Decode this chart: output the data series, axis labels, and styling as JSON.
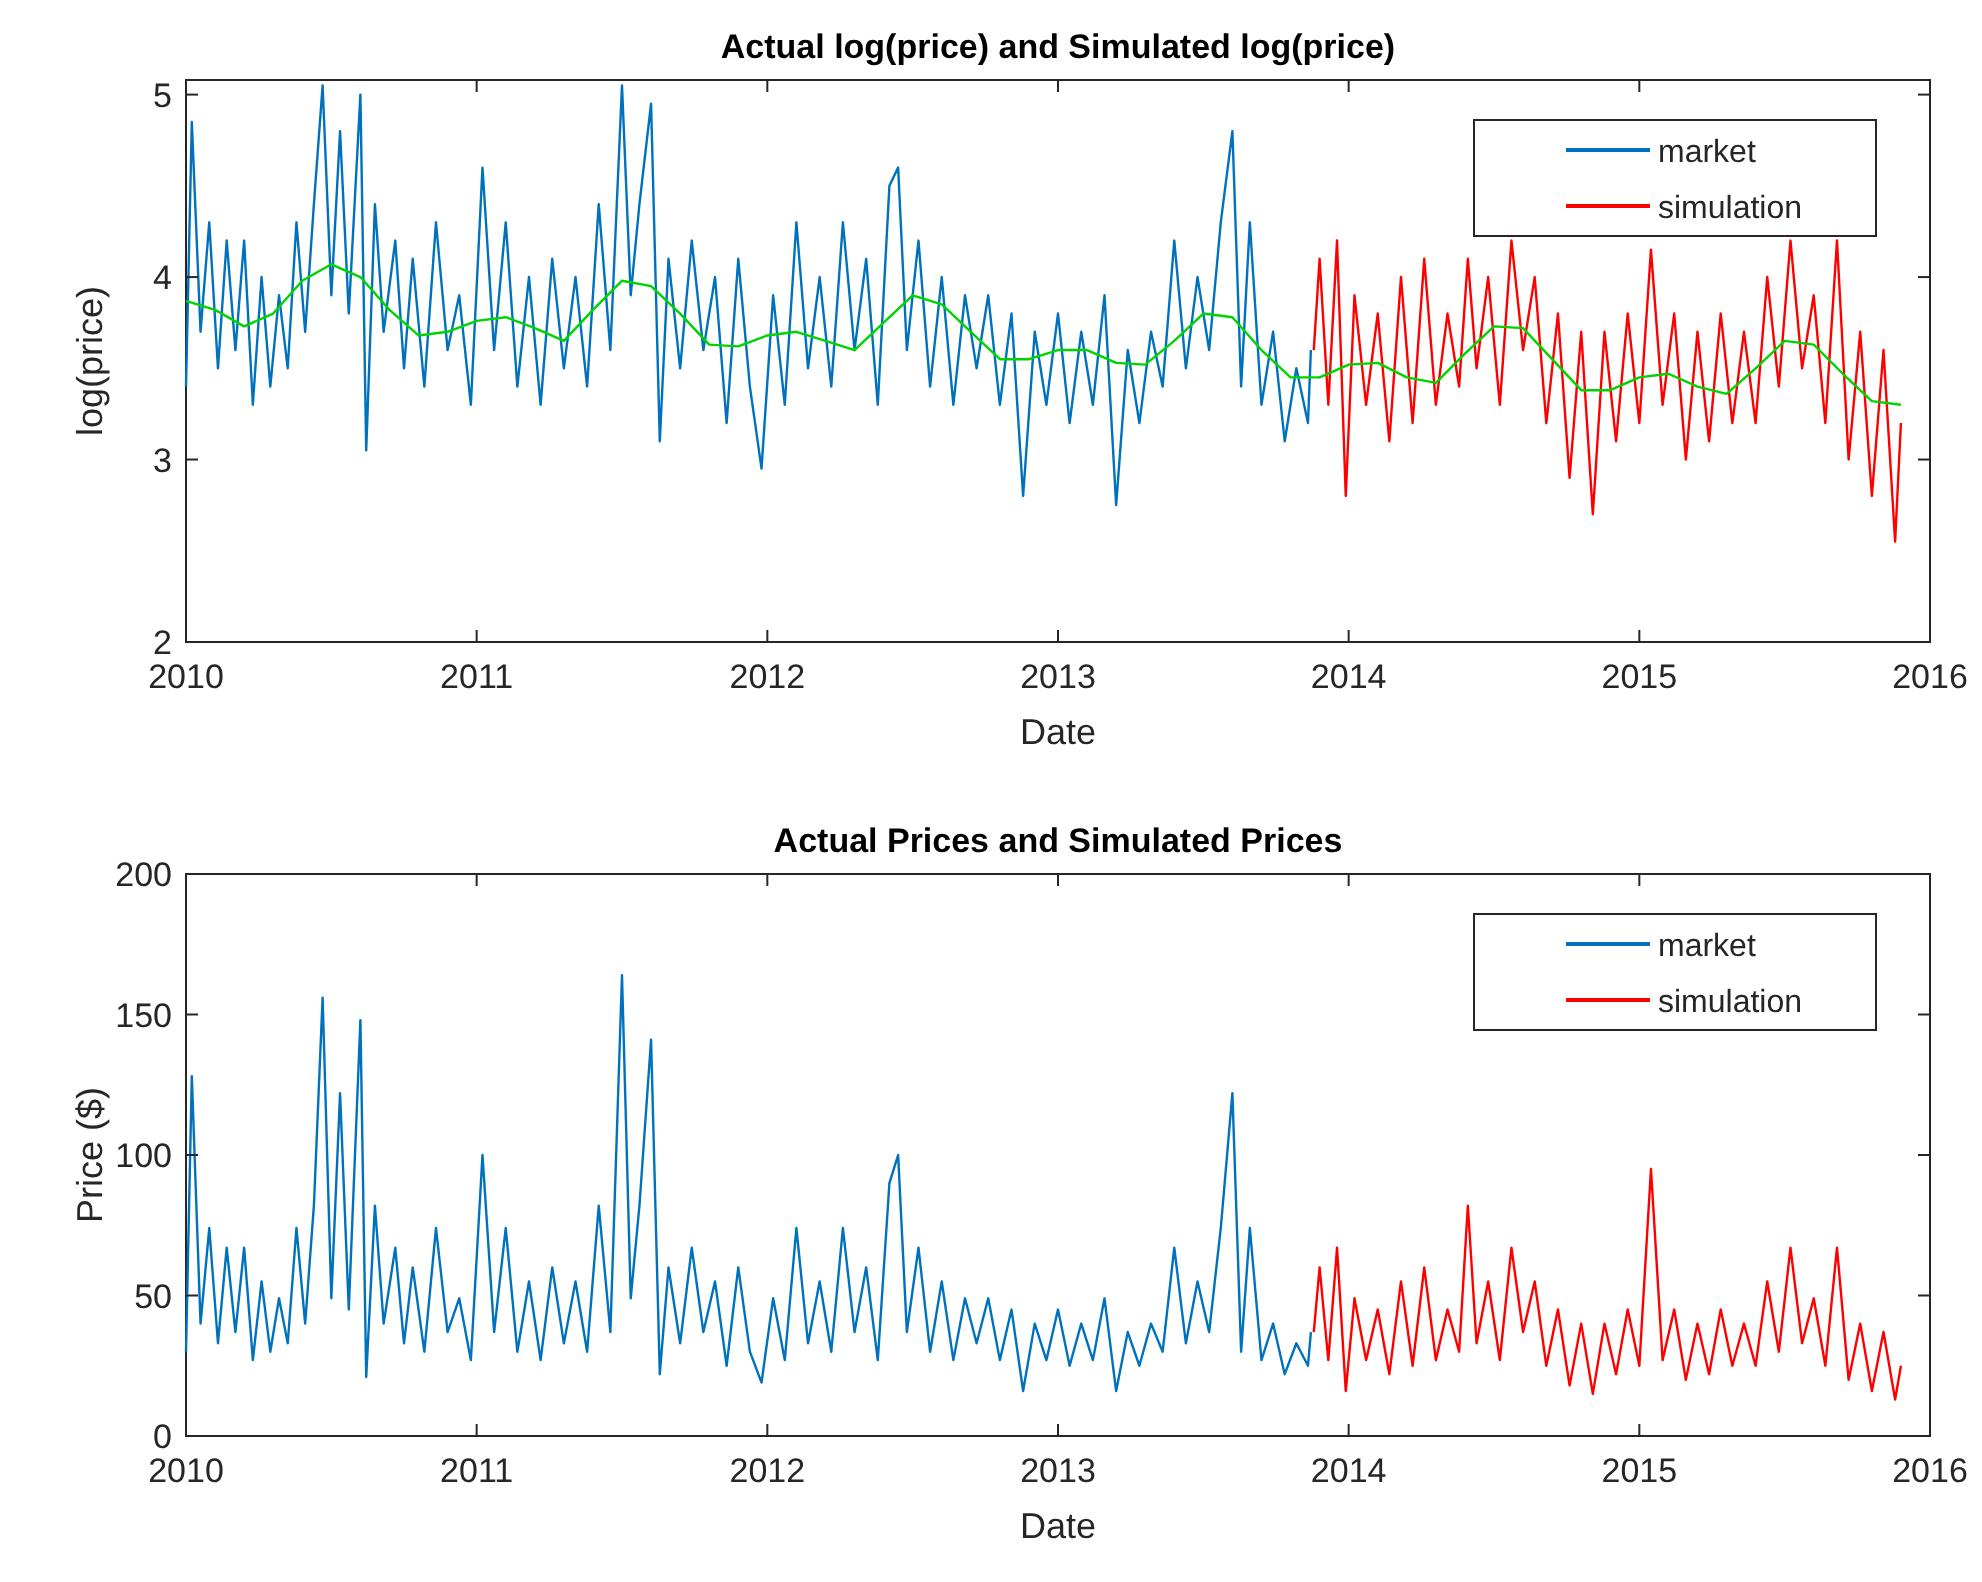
{
  "chart_data": [
    {
      "type": "line",
      "title": "Actual log(price) and Simulated log(price)",
      "xlabel": "Date",
      "ylabel": "log(price)",
      "xlim": [
        2010,
        2016
      ],
      "xticks": [
        2010,
        2011,
        2012,
        2013,
        2014,
        2015,
        2016
      ],
      "ylim": [
        2,
        5.08
      ],
      "yticks": [
        2,
        3,
        4,
        5
      ],
      "legend": "top right",
      "series": [
        {
          "name": "market",
          "color": "#0072bd",
          "x": [
            2010.0,
            2010.02,
            2010.05,
            2010.08,
            2010.11,
            2010.14,
            2010.17,
            2010.2,
            2010.23,
            2010.26,
            2010.29,
            2010.32,
            2010.35,
            2010.38,
            2010.41,
            2010.44,
            2010.47,
            2010.5,
            2010.53,
            2010.56,
            2010.6,
            2010.62,
            2010.65,
            2010.68,
            2010.72,
            2010.75,
            2010.78,
            2010.82,
            2010.86,
            2010.9,
            2010.94,
            2010.98,
            2011.02,
            2011.06,
            2011.1,
            2011.14,
            2011.18,
            2011.22,
            2011.26,
            2011.3,
            2011.34,
            2011.38,
            2011.42,
            2011.46,
            2011.5,
            2011.53,
            2011.56,
            2011.6,
            2011.63,
            2011.66,
            2011.7,
            2011.74,
            2011.78,
            2011.82,
            2011.86,
            2011.9,
            2011.94,
            2011.98,
            2012.02,
            2012.06,
            2012.1,
            2012.14,
            2012.18,
            2012.22,
            2012.26,
            2012.3,
            2012.34,
            2012.38,
            2012.42,
            2012.45,
            2012.48,
            2012.52,
            2012.56,
            2012.6,
            2012.64,
            2012.68,
            2012.72,
            2012.76,
            2012.8,
            2012.84,
            2012.88,
            2012.92,
            2012.96,
            2013.0,
            2013.04,
            2013.08,
            2013.12,
            2013.16,
            2013.2,
            2013.24,
            2013.28,
            2013.32,
            2013.36,
            2013.4,
            2013.44,
            2013.48,
            2013.52,
            2013.56,
            2013.6,
            2013.63,
            2013.66,
            2013.7,
            2013.74,
            2013.78,
            2013.82,
            2013.86,
            2013.87
          ],
          "values": [
            3.4,
            4.85,
            3.7,
            4.3,
            3.5,
            4.2,
            3.6,
            4.2,
            3.3,
            4.0,
            3.4,
            3.9,
            3.5,
            4.3,
            3.7,
            4.4,
            5.05,
            3.9,
            4.8,
            3.8,
            5.0,
            3.05,
            4.4,
            3.7,
            4.2,
            3.5,
            4.1,
            3.4,
            4.3,
            3.6,
            3.9,
            3.3,
            4.6,
            3.6,
            4.3,
            3.4,
            4.0,
            3.3,
            4.1,
            3.5,
            4.0,
            3.4,
            4.4,
            3.6,
            5.05,
            3.9,
            4.4,
            4.95,
            3.1,
            4.1,
            3.5,
            4.2,
            3.6,
            4.0,
            3.2,
            4.1,
            3.4,
            2.95,
            3.9,
            3.3,
            4.3,
            3.5,
            4.0,
            3.4,
            4.3,
            3.6,
            4.1,
            3.3,
            4.5,
            4.6,
            3.6,
            4.2,
            3.4,
            4.0,
            3.3,
            3.9,
            3.5,
            3.9,
            3.3,
            3.8,
            2.8,
            3.7,
            3.3,
            3.8,
            3.2,
            3.7,
            3.3,
            3.9,
            2.75,
            3.6,
            3.2,
            3.7,
            3.4,
            4.2,
            3.5,
            4.0,
            3.6,
            4.3,
            4.8,
            3.4,
            4.3,
            3.3,
            3.7,
            3.1,
            3.5,
            3.2,
            3.6
          ]
        },
        {
          "name": "simulation",
          "color": "#ff0000",
          "x": [
            2013.88,
            2013.9,
            2013.93,
            2013.96,
            2013.99,
            2014.02,
            2014.06,
            2014.1,
            2014.14,
            2014.18,
            2014.22,
            2014.26,
            2014.3,
            2014.34,
            2014.38,
            2014.41,
            2014.44,
            2014.48,
            2014.52,
            2014.56,
            2014.6,
            2014.64,
            2014.68,
            2014.72,
            2014.76,
            2014.8,
            2014.84,
            2014.88,
            2014.92,
            2014.96,
            2015.0,
            2015.04,
            2015.08,
            2015.12,
            2015.16,
            2015.2,
            2015.24,
            2015.28,
            2015.32,
            2015.36,
            2015.4,
            2015.44,
            2015.48,
            2015.52,
            2015.56,
            2015.6,
            2015.64,
            2015.68,
            2015.72,
            2015.76,
            2015.8,
            2015.84,
            2015.88,
            2015.9
          ],
          "values": [
            3.6,
            4.1,
            3.3,
            4.2,
            2.8,
            3.9,
            3.3,
            3.8,
            3.1,
            4.0,
            3.2,
            4.1,
            3.3,
            3.8,
            3.4,
            4.1,
            3.5,
            4.0,
            3.3,
            4.2,
            3.6,
            4.0,
            3.2,
            3.8,
            2.9,
            3.7,
            2.7,
            3.7,
            3.1,
            3.8,
            3.2,
            4.15,
            3.3,
            3.8,
            3.0,
            3.7,
            3.1,
            3.8,
            3.2,
            3.7,
            3.2,
            4.0,
            3.4,
            4.2,
            3.5,
            3.9,
            3.2,
            4.2,
            3.0,
            3.7,
            2.8,
            3.6,
            2.55,
            3.2
          ]
        },
        {
          "color": "#00d400",
          "x": [
            2010.0,
            2010.1,
            2010.2,
            2010.3,
            2010.4,
            2010.5,
            2010.6,
            2010.7,
            2010.8,
            2010.9,
            2011.0,
            2011.1,
            2011.2,
            2011.3,
            2011.4,
            2011.5,
            2011.6,
            2011.7,
            2011.8,
            2011.9,
            2012.0,
            2012.1,
            2012.2,
            2012.3,
            2012.4,
            2012.5,
            2012.6,
            2012.7,
            2012.8,
            2012.9,
            2013.0,
            2013.1,
            2013.2,
            2013.3,
            2013.4,
            2013.5,
            2013.6,
            2013.7,
            2013.8,
            2013.9,
            2014.0,
            2014.1,
            2014.2,
            2014.3,
            2014.4,
            2014.5,
            2014.6,
            2014.7,
            2014.8,
            2014.9,
            2015.0,
            2015.1,
            2015.2,
            2015.3,
            2015.4,
            2015.5,
            2015.6,
            2015.7,
            2015.8,
            2015.9
          ],
          "values": [
            3.87,
            3.82,
            3.73,
            3.8,
            3.98,
            4.07,
            4.0,
            3.82,
            3.68,
            3.7,
            3.76,
            3.78,
            3.72,
            3.65,
            3.82,
            3.98,
            3.95,
            3.8,
            3.63,
            3.62,
            3.68,
            3.7,
            3.65,
            3.6,
            3.75,
            3.9,
            3.85,
            3.7,
            3.55,
            3.55,
            3.6,
            3.6,
            3.53,
            3.52,
            3.65,
            3.8,
            3.78,
            3.6,
            3.45,
            3.45,
            3.52,
            3.53,
            3.45,
            3.42,
            3.58,
            3.73,
            3.72,
            3.55,
            3.38,
            3.38,
            3.45,
            3.47,
            3.4,
            3.36,
            3.5,
            3.65,
            3.63,
            3.47,
            3.32,
            3.3
          ]
        }
      ]
    },
    {
      "type": "line",
      "title": "Actual Prices and Simulated Prices",
      "xlabel": "Date",
      "ylabel": "Price ($)",
      "xlim": [
        2010,
        2016
      ],
      "xticks": [
        2010,
        2011,
        2012,
        2013,
        2014,
        2015,
        2016
      ],
      "ylim": [
        0,
        200
      ],
      "yticks": [
        0,
        50,
        100,
        150,
        200
      ],
      "legend": "top right",
      "series": [
        {
          "name": "market",
          "color": "#0072bd",
          "x": [
            2010.0,
            2010.02,
            2010.05,
            2010.08,
            2010.11,
            2010.14,
            2010.17,
            2010.2,
            2010.23,
            2010.26,
            2010.29,
            2010.32,
            2010.35,
            2010.38,
            2010.41,
            2010.44,
            2010.47,
            2010.5,
            2010.53,
            2010.56,
            2010.6,
            2010.62,
            2010.65,
            2010.68,
            2010.72,
            2010.75,
            2010.78,
            2010.82,
            2010.86,
            2010.9,
            2010.94,
            2010.98,
            2011.02,
            2011.06,
            2011.1,
            2011.14,
            2011.18,
            2011.22,
            2011.26,
            2011.3,
            2011.34,
            2011.38,
            2011.42,
            2011.46,
            2011.5,
            2011.53,
            2011.56,
            2011.6,
            2011.63,
            2011.66,
            2011.7,
            2011.74,
            2011.78,
            2011.82,
            2011.86,
            2011.9,
            2011.94,
            2011.98,
            2012.02,
            2012.06,
            2012.1,
            2012.14,
            2012.18,
            2012.22,
            2012.26,
            2012.3,
            2012.34,
            2012.38,
            2012.42,
            2012.45,
            2012.48,
            2012.52,
            2012.56,
            2012.6,
            2012.64,
            2012.68,
            2012.72,
            2012.76,
            2012.8,
            2012.84,
            2012.88,
            2012.92,
            2012.96,
            2013.0,
            2013.04,
            2013.08,
            2013.12,
            2013.16,
            2013.2,
            2013.24,
            2013.28,
            2013.32,
            2013.36,
            2013.4,
            2013.44,
            2013.48,
            2013.52,
            2013.56,
            2013.6,
            2013.63,
            2013.66,
            2013.7,
            2013.74,
            2013.78,
            2013.82,
            2013.86,
            2013.87
          ],
          "values": [
            30,
            128,
            40,
            74,
            33,
            67,
            37,
            67,
            27,
            55,
            30,
            49,
            33,
            74,
            40,
            82,
            156,
            49,
            122,
            45,
            148,
            21,
            82,
            40,
            67,
            33,
            60,
            30,
            74,
            37,
            49,
            27,
            100,
            37,
            74,
            30,
            55,
            27,
            60,
            33,
            55,
            30,
            82,
            37,
            164,
            49,
            82,
            141,
            22,
            60,
            33,
            67,
            37,
            55,
            25,
            60,
            30,
            19,
            49,
            27,
            74,
            33,
            55,
            30,
            74,
            37,
            60,
            27,
            90,
            100,
            37,
            67,
            30,
            55,
            27,
            49,
            33,
            49,
            27,
            45,
            16,
            40,
            27,
            45,
            25,
            40,
            27,
            49,
            16,
            37,
            25,
            40,
            30,
            67,
            33,
            55,
            37,
            74,
            122,
            30,
            74,
            27,
            40,
            22,
            33,
            25,
            37
          ]
        },
        {
          "name": "simulation",
          "color": "#ff0000",
          "x": [
            2013.88,
            2013.9,
            2013.93,
            2013.96,
            2013.99,
            2014.02,
            2014.06,
            2014.1,
            2014.14,
            2014.18,
            2014.22,
            2014.26,
            2014.3,
            2014.34,
            2014.38,
            2014.41,
            2014.44,
            2014.48,
            2014.52,
            2014.56,
            2014.6,
            2014.64,
            2014.68,
            2014.72,
            2014.76,
            2014.8,
            2014.84,
            2014.88,
            2014.92,
            2014.96,
            2015.0,
            2015.04,
            2015.08,
            2015.12,
            2015.16,
            2015.2,
            2015.24,
            2015.28,
            2015.32,
            2015.36,
            2015.4,
            2015.44,
            2015.48,
            2015.52,
            2015.56,
            2015.6,
            2015.64,
            2015.68,
            2015.72,
            2015.76,
            2015.8,
            2015.84,
            2015.88,
            2015.9
          ],
          "values": [
            37,
            60,
            27,
            67,
            16,
            49,
            27,
            45,
            22,
            55,
            25,
            60,
            27,
            45,
            30,
            82,
            33,
            55,
            27,
            67,
            37,
            55,
            25,
            45,
            18,
            40,
            15,
            40,
            22,
            45,
            25,
            95,
            27,
            45,
            20,
            40,
            22,
            45,
            25,
            40,
            25,
            55,
            30,
            67,
            33,
            49,
            25,
            67,
            20,
            40,
            16,
            37,
            13,
            25
          ]
        }
      ]
    }
  ]
}
